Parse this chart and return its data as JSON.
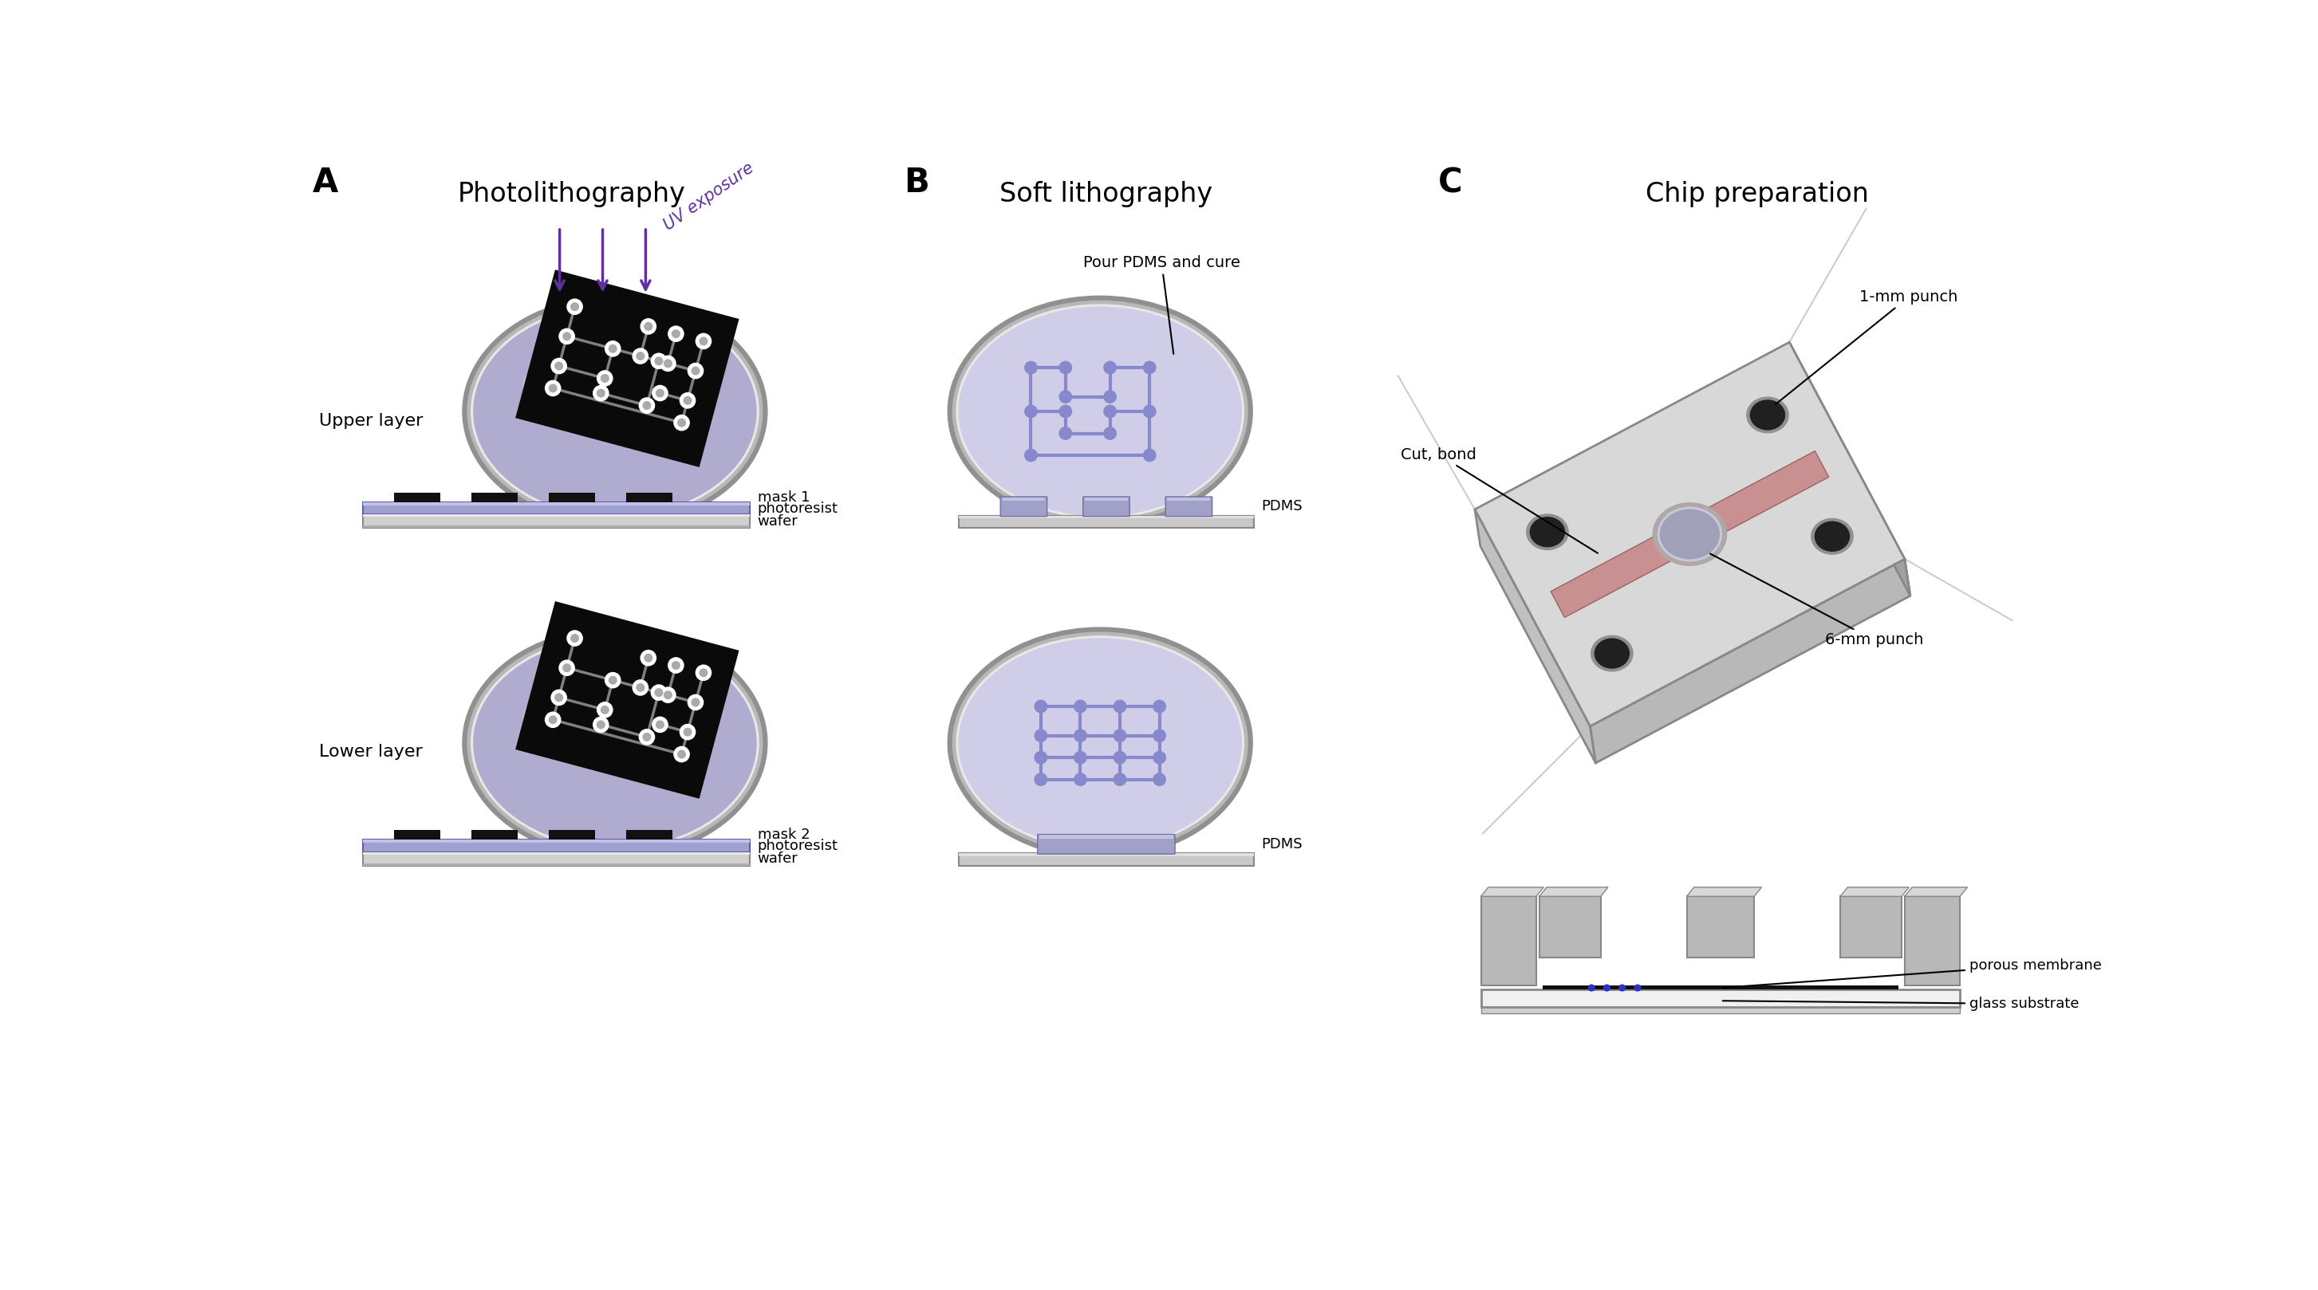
{
  "panel_A_label": "A",
  "panel_B_label": "B",
  "panel_C_label": "C",
  "panel_A_title": "Photolithography",
  "panel_B_title": "Soft lithography",
  "panel_C_title": "Chip preparation",
  "upper_layer_label": "Upper layer",
  "lower_layer_label": "Lower layer",
  "uv_exposure_label": "UV exposure",
  "pour_pdms_label": "Pour PDMS and cure",
  "cut_bond_label": "Cut, bond",
  "punch_1mm_label": "1-mm punch",
  "punch_6mm_label": "6-mm punch",
  "mask1_label": "mask 1",
  "photoresist1_label": "photoresist",
  "wafer1_label": "wafer",
  "mask2_label": "mask 2",
  "photoresist2_label": "photoresist",
  "wafer2_label": "wafer",
  "pdms1_label": "PDMS",
  "pdms2_label": "PDMS",
  "porous_membrane_label": "porous membrane",
  "glass_substrate_label": "glass substrate",
  "bg_color": "#ffffff",
  "text_color": "#000000",
  "uv_arrow_color": "#6030a0",
  "lavender_color": "#b0acd0",
  "lavender_light": "#c8c5e0",
  "gray_ring_outer": "#b0b0b0",
  "gray_ring_mid": "#d0d0d0",
  "gray_ring_inner": "#e0e0e0",
  "mask_black": "#1a1a1a",
  "mask_gray_feat": "#808080",
  "pdms_bump_color": "#a0a0c8",
  "pdms_base_gray": "#c0c0c0",
  "chip_top": "#d4d4d4",
  "chip_right": "#a8a8a8",
  "chip_front": "#bcbcbc",
  "chip_channel_pink": "#d4a0a0",
  "chip_hole_gray": "#909090",
  "chip_hole_dark": "#505050",
  "chip_hole_rim": "#c0b8b8",
  "cross_wafer_gray": "#c8c8c8",
  "cross_photoresist": "#a0a0c8",
  "cross_mask_black": "#111111",
  "panel_label_fontsize": 30,
  "title_fontsize": 24,
  "label_fontsize": 16,
  "annot_fontsize": 14,
  "small_label_fontsize": 13
}
